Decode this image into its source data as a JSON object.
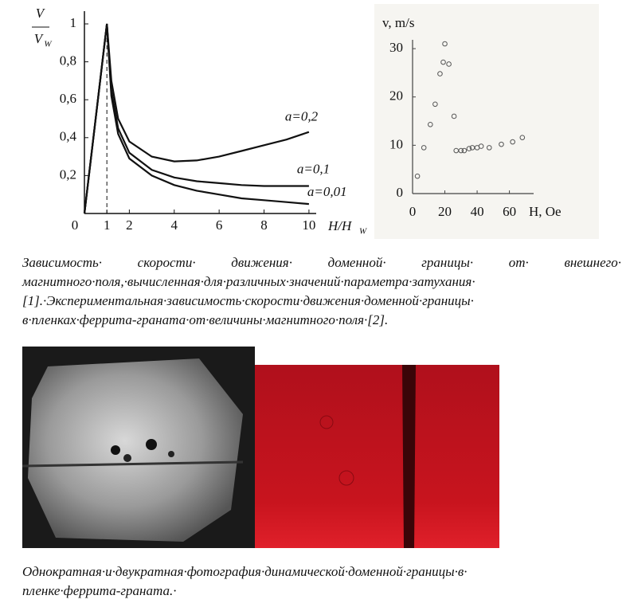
{
  "chart_data": [
    {
      "type": "line",
      "y_label": {
        "numerator": "V",
        "denominator": "V",
        "subscript": "W"
      },
      "x_label": {
        "main": "H/H",
        "subscript": "W"
      },
      "xlim": [
        0,
        10.5
      ],
      "ylim": [
        0,
        1
      ],
      "xticks": [
        0,
        1,
        2,
        4,
        6,
        8,
        10
      ],
      "yticks": [
        {
          "value": 0.2,
          "label": "0,2"
        },
        {
          "value": 0.4,
          "label": "0,4"
        },
        {
          "value": 0.6,
          "label": "0,6"
        },
        {
          "value": 0.8,
          "label": "0,8"
        },
        1
      ],
      "vline": 1,
      "x": [
        0,
        1,
        1.2,
        1.5,
        2,
        3,
        4,
        5,
        6,
        7,
        8,
        9,
        10
      ],
      "series": [
        {
          "name": "a=0,2",
          "color": "#111111",
          "values": [
            0,
            1,
            0.7,
            0.5,
            0.38,
            0.3,
            0.275,
            0.28,
            0.3,
            0.33,
            0.36,
            0.39,
            0.43
          ]
        },
        {
          "name": "a=0,1",
          "color": "#111111",
          "values": [
            0,
            1,
            0.65,
            0.45,
            0.32,
            0.23,
            0.19,
            0.17,
            0.16,
            0.15,
            0.145,
            0.145,
            0.145
          ]
        },
        {
          "name": "a=0,01",
          "color": "#111111",
          "values": [
            0,
            1,
            0.62,
            0.42,
            0.29,
            0.2,
            0.15,
            0.12,
            0.1,
            0.08,
            0.07,
            0.06,
            0.05
          ]
        }
      ]
    },
    {
      "type": "scatter",
      "y_label": "v, m/s",
      "x_label": "H, Oe",
      "xlim": [
        0,
        75
      ],
      "ylim": [
        0,
        31
      ],
      "xticks": [
        0,
        20,
        40,
        60
      ],
      "yticks": [
        0,
        10,
        20,
        30
      ],
      "color": "#555555",
      "x": [
        3,
        7,
        11,
        14,
        17,
        19,
        20,
        22.5,
        25.7,
        27,
        30,
        32,
        35,
        37,
        40,
        42.5,
        47.5,
        55,
        62,
        68
      ],
      "values": [
        3.6,
        9.5,
        14.3,
        18.5,
        24.8,
        27.2,
        31,
        26.8,
        16,
        8.9,
        8.9,
        8.9,
        9.3,
        9.5,
        9.5,
        9.8,
        9.5,
        10.2,
        10.7,
        11.6
      ]
    }
  ],
  "caption_top": [
    "Зависимость· скорости· движения· доменной· границы· от· внешнего·",
    "магнитного·поля,·вычисленная·для·различных·значений·параметра·затухания·",
    "[1].·Экспериментальная·зависимость·скорости·движения·доменной·границы·",
    "в·пленках·феррита-граната·от·величины·магнитного·поля·[2]."
  ],
  "caption_bottom": [
    "Однократная·и·двукратная·фотография·динамической·доменной·границы·в·",
    "пленке·феррита-граната.·"
  ]
}
